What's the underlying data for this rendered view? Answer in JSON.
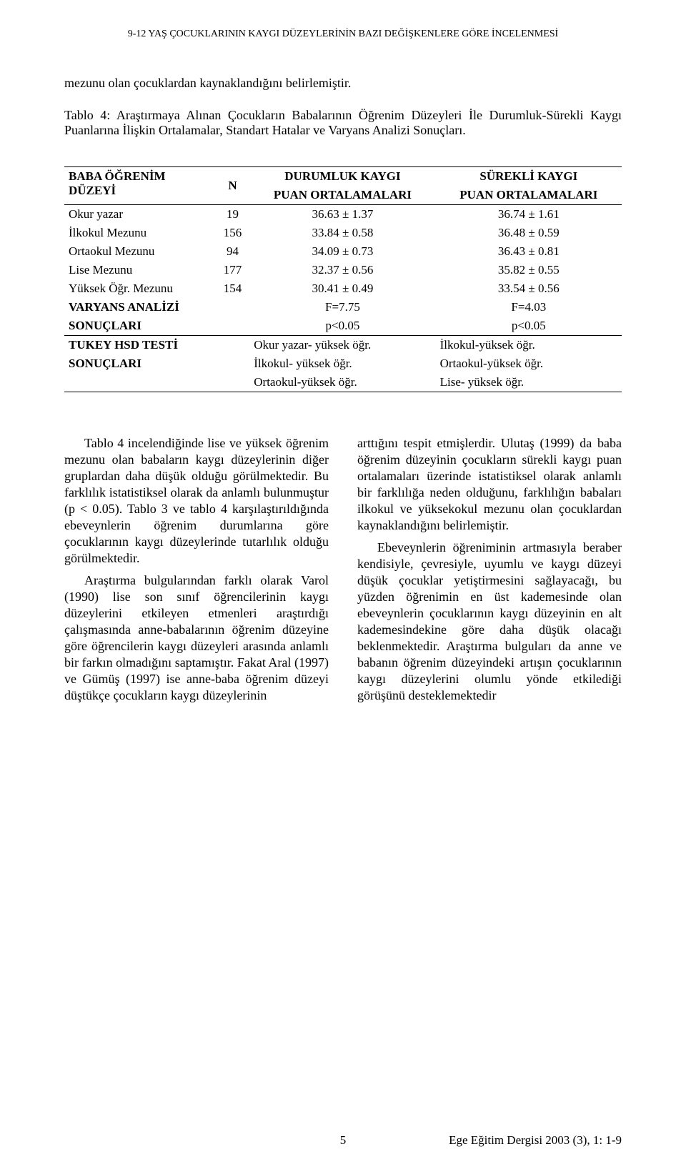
{
  "running_head": "9-12 YAŞ ÇOCUKLARININ KAYGI DÜZEYLERİNİN BAZI DEĞİŞKENLERE GÖRE İNCELENMESİ",
  "intro_line": "mezunu olan çocuklardan kaynaklandığını    belirlemiştir.",
  "table_caption": "Tablo 4: Araştırmaya Alınan Çocukların Babalarının Öğrenim Düzeyleri İle Durumluk-Sürekli Kaygı Puanlarına İlişkin Ortalamalar, Standart Hatalar ve Varyans Analizi Sonuçları.",
  "table": {
    "header": {
      "col1_line1": "BABA ÖĞRENİM",
      "col1_line2": "DÜZEYİ",
      "col2": "N",
      "col3_line1": "DURUMLUK KAYGI",
      "col3_line2": "PUAN ORTALAMALARI",
      "col4_line1": "SÜREKLİ KAYGI",
      "col4_line2": "PUAN ORTALAMALARI"
    },
    "rows": [
      {
        "label": "Okur yazar",
        "n": "19",
        "durumluk": "36.63 ± 1.37",
        "surekli": "36.74 ± 1.61"
      },
      {
        "label": "İlkokul Mezunu",
        "n": "156",
        "durumluk": "33.84 ± 0.58",
        "surekli": "36.48 ± 0.59"
      },
      {
        "label": "Ortaokul Mezunu",
        "n": "94",
        "durumluk": "34.09 ± 0.73",
        "surekli": "36.43 ± 0.81"
      },
      {
        "label": "Lise Mezunu",
        "n": "177",
        "durumluk": "32.37 ± 0.56",
        "surekli": "35.82 ± 0.55"
      },
      {
        "label": "Yüksek Öğr. Mezunu",
        "n": "154",
        "durumluk": "30.41 ± 0.49",
        "surekli": "33.54 ± 0.56"
      }
    ],
    "anova": {
      "label_line1": "VARYANS ANALİZİ",
      "label_line2": "SONUÇLARI",
      "durumluk_line1": "F=7.75",
      "durumluk_line2": "p<0.05",
      "surekli_line1": "F=4.03",
      "surekli_line2": "p<0.05"
    },
    "tukey": {
      "label_line1": "TUKEY HSD TESTİ",
      "label_line2": "SONUÇLARI",
      "durumluk_l1": "Okur yazar- yüksek öğr.",
      "durumluk_l2": "İlkokul- yüksek öğr.",
      "durumluk_l3": "Ortaokul-yüksek öğr.",
      "surekli_l1": "İlkokul-yüksek öğr.",
      "surekli_l2": "Ortaokul-yüksek öğr.",
      "surekli_l3": "Lise- yüksek öğr."
    }
  },
  "body": {
    "left_p1": "Tablo 4 incelendiğinde lise ve yüksek öğrenim mezunu olan babaların kaygı düzeylerinin diğer gruplardan daha düşük olduğu görülmektedir. Bu farklılık istatistiksel olarak da anlamlı bulunmuştur (p < 0.05). Tablo 3 ve tablo 4 karşılaştırıldığında ebeveynlerin öğrenim durumlarına göre çocuklarının kaygı düzeylerinde tutarlılık olduğu görülmektedir.",
    "left_p2": "Araştırma bulgularından farklı olarak Varol (1990) lise son sınıf öğrencilerinin kaygı düzeylerini etkileyen etmenleri araştırdığı çalışmasında anne-babalarının öğrenim düzeyine göre öğrencilerin kaygı düzeyleri arasında anlamlı bir farkın olmadığını saptamıştır. Fakat Aral (1997) ve Gümüş (1997) ise anne-baba öğrenim düzeyi düştükçe çocukların kaygı düzeylerinin",
    "right_p1": "arttığını tespit etmişlerdir. Ulutaş (1999) da baba öğrenim düzeyinin çocukların sürekli kaygı puan ortalamaları üzerinde istatistiksel olarak anlamlı bir farklılığa neden olduğunu, farklılığın babaları ilkokul ve yüksekokul mezunu olan çocuklardan kaynaklandığını belirlemiştir.",
    "right_p2": "Ebeveynlerin öğreniminin artmasıyla beraber kendisiyle, çevresiyle, uyumlu ve kaygı düzeyi düşük çocuklar yetiştirmesini sağlayacağı, bu yüzden öğrenimin en üst kademesinde olan ebeveynlerin çocuklarının kaygı düzeyinin en alt kademesindekine göre daha düşük olacağı beklenmektedir. Araştırma bulguları da  anne ve babanın öğrenim düzeyindeki artışın çocuklarının kaygı düzeylerini olumlu yönde etkilediği görüşünü desteklemektedir"
  },
  "footer": {
    "page_num": "5",
    "journal": "Ege Eğitim Dergisi 2003 (3),  1:  1-9"
  }
}
